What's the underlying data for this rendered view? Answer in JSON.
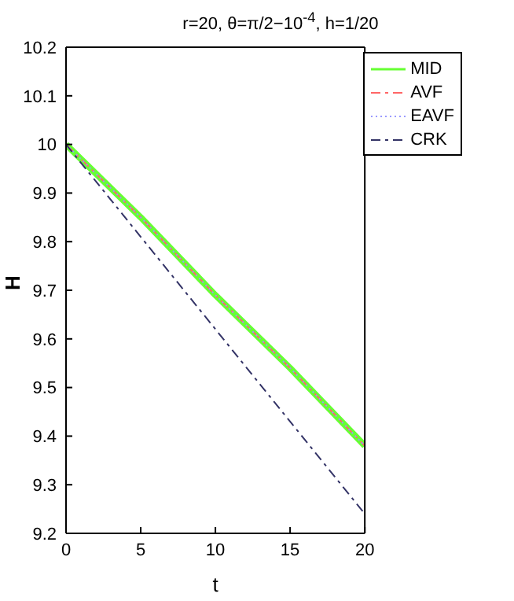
{
  "chart_data": {
    "type": "line",
    "title": "r=20, θ=π/2−10$^{-4}$, h=1/20",
    "xlabel": "t",
    "ylabel": "H",
    "x": [
      0,
      5,
      10,
      15,
      20
    ],
    "series": [
      {
        "name": "MID",
        "color": "#66ff33",
        "values": [
          10,
          9.85,
          9.69,
          9.54,
          9.38
        ],
        "line_style": "solid"
      },
      {
        "name": "AVF",
        "color": "#ff6666",
        "values": [
          10,
          9.85,
          9.69,
          9.54,
          9.38
        ],
        "line_style": "dashed"
      },
      {
        "name": "EAVF",
        "color": "#9999ff",
        "values": [
          10,
          9.85,
          9.69,
          9.54,
          9.38
        ],
        "line_style": "dotted"
      },
      {
        "name": "CRK",
        "color": "#333366",
        "values": [
          10,
          9.81,
          9.62,
          9.43,
          9.24
        ],
        "line_style": "dashed"
      }
    ],
    "xlim": [
      0,
      20
    ],
    "xticks": [
      0,
      5,
      10,
      15,
      20
    ],
    "ylim": [
      9.2,
      10.2
    ],
    "yticks": [
      9.2,
      9.3,
      9.4,
      9.5,
      9.6,
      9.7,
      9.8,
      9.9,
      10,
      10.1,
      10.2
    ],
    "grid": false,
    "legend": "top right",
    "marker": "none"
  }
}
